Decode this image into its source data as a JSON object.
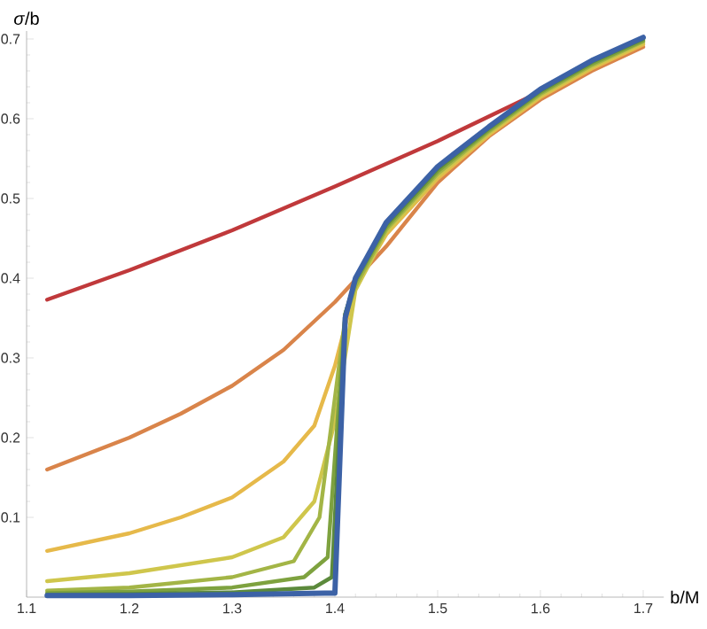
{
  "chart_data": {
    "type": "line",
    "xlabel": "b/M",
    "ylabel": "*σ*/b",
    "xlim": [
      1.1,
      1.72
    ],
    "ylim": [
      0,
      0.71
    ],
    "xticks": [
      1.1,
      1.2,
      1.3,
      1.4,
      1.5,
      1.6,
      1.7
    ],
    "yticks": [
      0.1,
      0.2,
      0.3,
      0.4,
      0.5,
      0.6,
      0.7
    ],
    "series": [
      {
        "color": "#c0393b",
        "x": [
          1.12,
          1.2,
          1.3,
          1.4,
          1.5,
          1.6
        ],
        "values": [
          0.373,
          0.41,
          0.46,
          0.515,
          0.572,
          0.634
        ]
      },
      {
        "color": "#d9844a",
        "x": [
          1.12,
          1.2,
          1.25,
          1.3,
          1.35,
          1.4,
          1.45,
          1.5,
          1.55,
          1.6,
          1.65,
          1.7
        ],
        "values": [
          0.16,
          0.2,
          0.23,
          0.265,
          0.31,
          0.37,
          0.44,
          0.52,
          0.578,
          0.624,
          0.66,
          0.69
        ]
      },
      {
        "color": "#e6b94a",
        "x": [
          1.12,
          1.2,
          1.25,
          1.3,
          1.35,
          1.38,
          1.4,
          1.42,
          1.45,
          1.5,
          1.55,
          1.6,
          1.65,
          1.7
        ],
        "values": [
          0.058,
          0.08,
          0.1,
          0.125,
          0.17,
          0.215,
          0.29,
          0.39,
          0.455,
          0.525,
          0.58,
          0.627,
          0.663,
          0.693
        ]
      },
      {
        "color": "#cfc64c",
        "x": [
          1.12,
          1.2,
          1.3,
          1.35,
          1.38,
          1.4,
          1.42,
          1.45,
          1.5,
          1.55,
          1.6,
          1.65,
          1.7
        ],
        "values": [
          0.02,
          0.03,
          0.05,
          0.075,
          0.12,
          0.22,
          0.385,
          0.458,
          0.528,
          0.582,
          0.629,
          0.665,
          0.695
        ]
      },
      {
        "color": "#a3b546",
        "x": [
          1.12,
          1.2,
          1.3,
          1.36,
          1.385,
          1.41,
          1.42,
          1.45,
          1.5,
          1.55,
          1.6,
          1.65,
          1.7
        ],
        "values": [
          0.008,
          0.012,
          0.025,
          0.045,
          0.1,
          0.35,
          0.39,
          0.461,
          0.531,
          0.584,
          0.631,
          0.667,
          0.697
        ]
      },
      {
        "color": "#7ea23f",
        "x": [
          1.12,
          1.2,
          1.3,
          1.37,
          1.393,
          1.41,
          1.42,
          1.45,
          1.5,
          1.55,
          1.6,
          1.65,
          1.7
        ],
        "values": [
          0.005,
          0.007,
          0.012,
          0.025,
          0.05,
          0.355,
          0.395,
          0.464,
          0.534,
          0.586,
          0.633,
          0.669,
          0.698
        ]
      },
      {
        "color": "#5c8a3c",
        "x": [
          1.12,
          1.2,
          1.3,
          1.38,
          1.397,
          1.41,
          1.42,
          1.45,
          1.5,
          1.55,
          1.6,
          1.65,
          1.7
        ],
        "values": [
          0.003,
          0.004,
          0.006,
          0.012,
          0.025,
          0.355,
          0.398,
          0.467,
          0.537,
          0.588,
          0.635,
          0.671,
          0.7
        ]
      },
      {
        "color": "#3c62a6",
        "x": [
          1.12,
          1.2,
          1.3,
          1.39,
          1.4,
          1.41,
          1.42,
          1.45,
          1.5,
          1.55,
          1.6,
          1.65,
          1.7
        ],
        "values": [
          0.002,
          0.002,
          0.003,
          0.005,
          0.005,
          0.35,
          0.4,
          0.47,
          0.54,
          0.59,
          0.637,
          0.673,
          0.702
        ]
      }
    ]
  }
}
